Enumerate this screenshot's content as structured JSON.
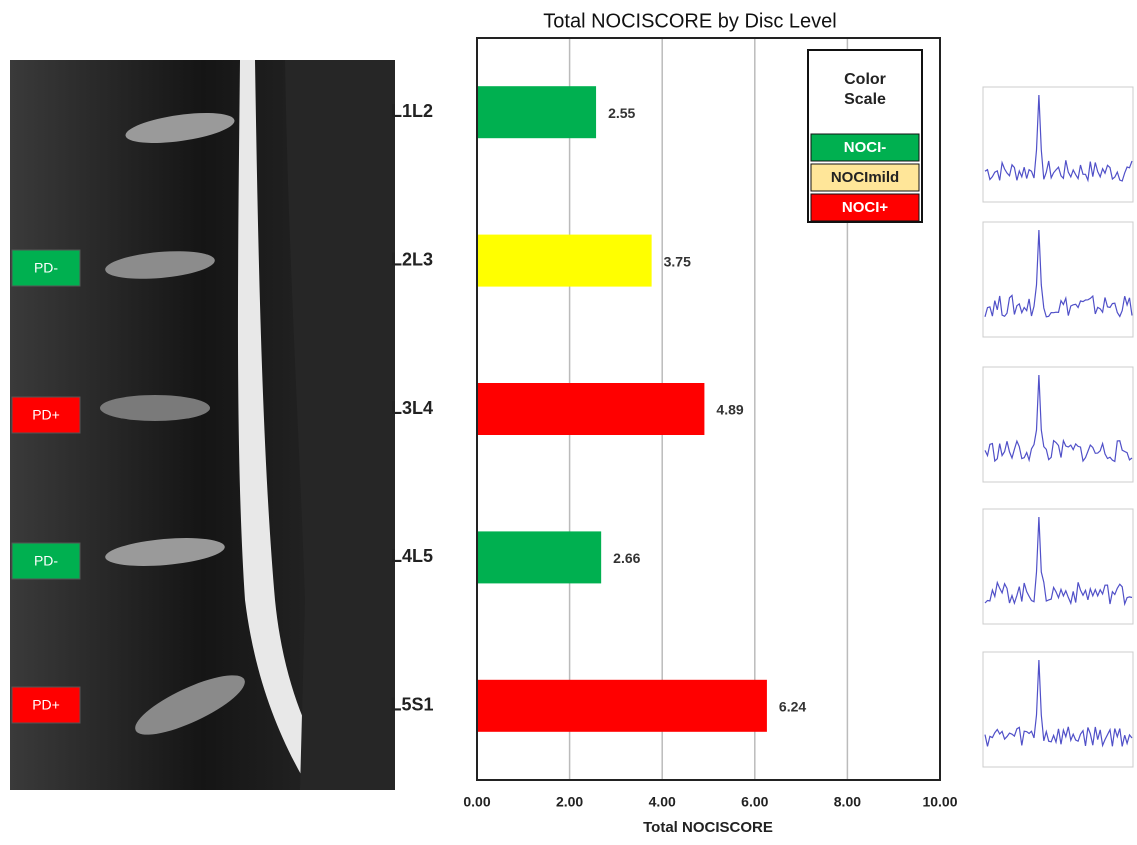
{
  "chart_data": {
    "type": "bar",
    "orientation": "horizontal",
    "title": "Total NOCISCORE by Disc Level",
    "x_label": "Total NOCISCORE",
    "categories": [
      "L1L2",
      "L2L3",
      "L3L4",
      "L4L5",
      "L5S1"
    ],
    "values": [
      2.55,
      3.75,
      4.89,
      2.66,
      6.24
    ],
    "colors": [
      "#00b050",
      "#ffff00",
      "#ff0000",
      "#00b050",
      "#ff0000"
    ],
    "xlim": [
      0,
      10
    ],
    "xticks": [
      {
        "value": 0,
        "label": "0.00"
      },
      {
        "value": 2,
        "label": "2.00"
      },
      {
        "value": 4,
        "label": "4.00"
      },
      {
        "value": 6,
        "label": "6.00"
      },
      {
        "value": 8,
        "label": "8.00"
      },
      {
        "value": 10,
        "label": "10.00"
      }
    ],
    "grid": true,
    "legend": {
      "title": "Color Scale",
      "items": [
        {
          "label": "NOCI-",
          "color": "#00b050"
        },
        {
          "label": "NOCImild",
          "color": "#ffe699"
        },
        {
          "label": "NOCI+",
          "color": "#ff0000"
        }
      ]
    }
  },
  "mri": {
    "labels": [
      {
        "text": "PD-",
        "color": "#00b050"
      },
      {
        "text": "PD+",
        "color": "#ff0000"
      },
      {
        "text": "PD-",
        "color": "#00b050"
      },
      {
        "text": "PD+",
        "color": "#ff0000"
      }
    ]
  }
}
